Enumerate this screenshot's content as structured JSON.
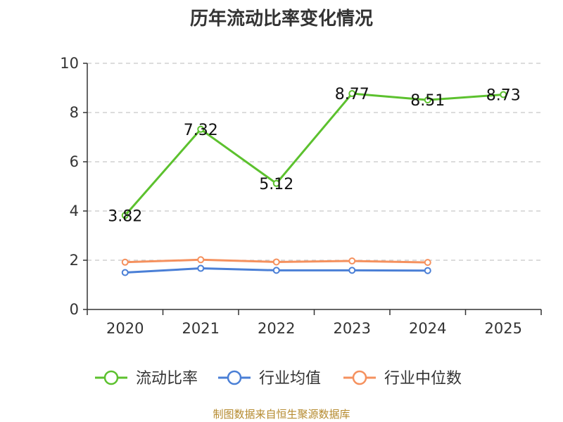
{
  "chart_data": {
    "type": "line",
    "title": "历年流动比率变化情况",
    "categories": [
      "2020",
      "2021",
      "2022",
      "2023",
      "2024",
      "2025"
    ],
    "ylim": [
      0,
      10
    ],
    "yticks": [
      0,
      2,
      4,
      6,
      8,
      10
    ],
    "grid": true,
    "legend_position": "bottom",
    "series": [
      {
        "name": "流动比率",
        "color": "#5cc12e",
        "values": [
          3.82,
          7.32,
          5.12,
          8.77,
          8.51,
          8.73
        ],
        "labels": [
          "3.82",
          "7.32",
          "5.12",
          "8.77",
          "8.51",
          "8.73"
        ]
      },
      {
        "name": "行业均值",
        "color": "#4a7fd6",
        "values": [
          1.5,
          1.67,
          1.59,
          1.59,
          1.58,
          null
        ]
      },
      {
        "name": "行业中位数",
        "color": "#f5915e",
        "values": [
          1.92,
          2.02,
          1.93,
          1.97,
          1.91,
          null
        ]
      }
    ]
  },
  "source_note": "制图数据来自恒生聚源数据库"
}
